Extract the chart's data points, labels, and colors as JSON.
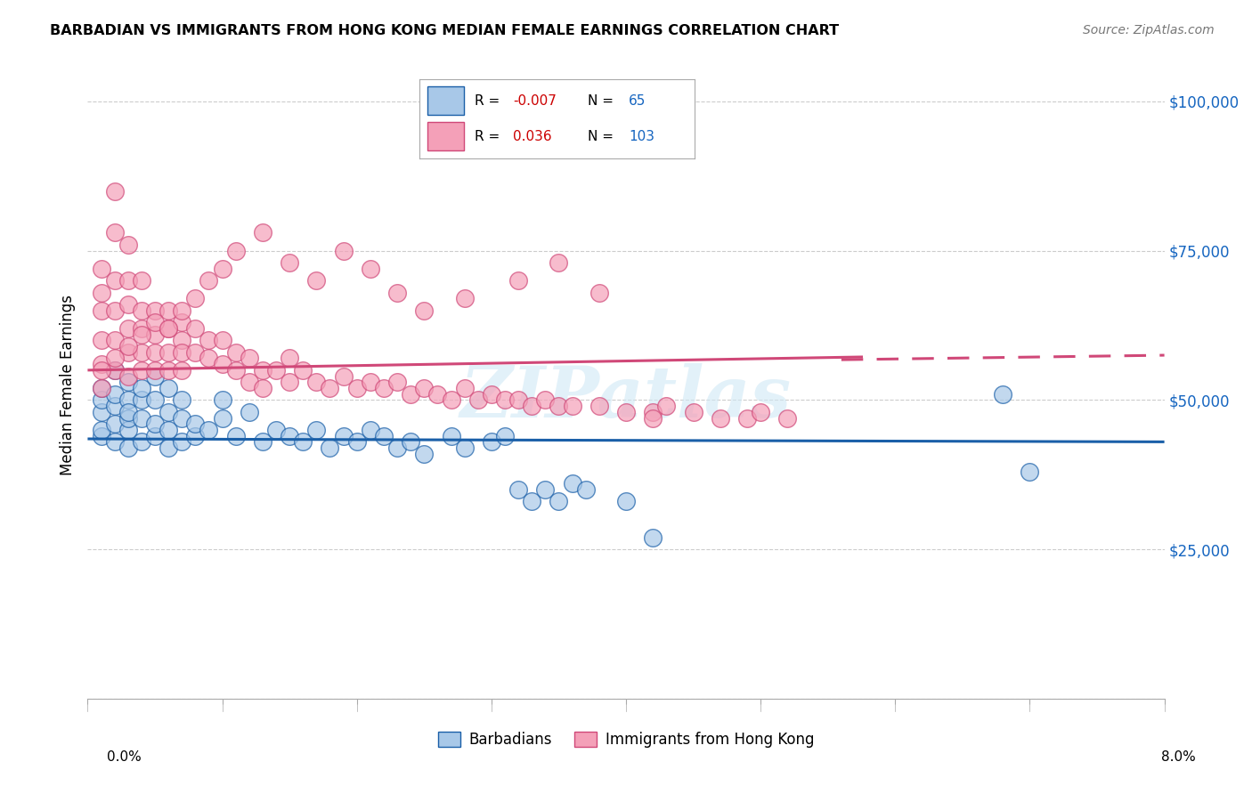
{
  "title": "BARBADIAN VS IMMIGRANTS FROM HONG KONG MEDIAN FEMALE EARNINGS CORRELATION CHART",
  "source": "Source: ZipAtlas.com",
  "ylabel": "Median Female Earnings",
  "watermark": "ZIPatlas",
  "color_blue": "#a8c8e8",
  "color_pink": "#f4a0b8",
  "line_blue": "#1a5fa8",
  "line_pink": "#d04878",
  "background": "#ffffff",
  "xmin": 0.0,
  "xmax": 0.08,
  "ymin": 0,
  "ymax": 105000,
  "yticks": [
    0,
    25000,
    50000,
    75000,
    100000
  ],
  "ytick_labels": [
    "",
    "$25,000",
    "$50,000",
    "$75,000",
    "$100,000"
  ],
  "blue_R": -0.007,
  "blue_N": 65,
  "pink_R": 0.036,
  "pink_N": 103,
  "blue_line_y0": 43500,
  "blue_line_y1": 43000,
  "pink_line_y0": 55000,
  "pink_line_y1": 57500,
  "blue_scatter_x": [
    0.001,
    0.001,
    0.001,
    0.001,
    0.001,
    0.002,
    0.002,
    0.002,
    0.002,
    0.002,
    0.003,
    0.003,
    0.003,
    0.003,
    0.003,
    0.003,
    0.004,
    0.004,
    0.004,
    0.004,
    0.005,
    0.005,
    0.005,
    0.005,
    0.006,
    0.006,
    0.006,
    0.006,
    0.007,
    0.007,
    0.007,
    0.008,
    0.008,
    0.009,
    0.01,
    0.01,
    0.011,
    0.012,
    0.013,
    0.014,
    0.015,
    0.016,
    0.017,
    0.018,
    0.019,
    0.02,
    0.021,
    0.022,
    0.023,
    0.024,
    0.025,
    0.027,
    0.028,
    0.03,
    0.031,
    0.032,
    0.033,
    0.034,
    0.035,
    0.036,
    0.037,
    0.04,
    0.042,
    0.068,
    0.07
  ],
  "blue_scatter_y": [
    44000,
    48000,
    50000,
    52000,
    45000,
    43000,
    46000,
    49000,
    51000,
    55000,
    42000,
    45000,
    47000,
    50000,
    53000,
    48000,
    43000,
    47000,
    50000,
    52000,
    44000,
    46000,
    50000,
    54000,
    42000,
    45000,
    48000,
    52000,
    43000,
    47000,
    50000,
    44000,
    46000,
    45000,
    47000,
    50000,
    44000,
    48000,
    43000,
    45000,
    44000,
    43000,
    45000,
    42000,
    44000,
    43000,
    45000,
    44000,
    42000,
    43000,
    41000,
    44000,
    42000,
    43000,
    44000,
    35000,
    33000,
    35000,
    33000,
    36000,
    35000,
    33000,
    27000,
    51000,
    38000
  ],
  "pink_scatter_x": [
    0.001,
    0.001,
    0.001,
    0.001,
    0.001,
    0.001,
    0.002,
    0.002,
    0.002,
    0.002,
    0.002,
    0.002,
    0.003,
    0.003,
    0.003,
    0.003,
    0.003,
    0.003,
    0.004,
    0.004,
    0.004,
    0.004,
    0.004,
    0.005,
    0.005,
    0.005,
    0.005,
    0.006,
    0.006,
    0.006,
    0.006,
    0.007,
    0.007,
    0.007,
    0.007,
    0.008,
    0.008,
    0.009,
    0.009,
    0.01,
    0.01,
    0.011,
    0.011,
    0.012,
    0.012,
    0.013,
    0.013,
    0.014,
    0.015,
    0.015,
    0.016,
    0.017,
    0.018,
    0.019,
    0.02,
    0.021,
    0.022,
    0.023,
    0.024,
    0.025,
    0.026,
    0.027,
    0.028,
    0.029,
    0.03,
    0.031,
    0.032,
    0.033,
    0.034,
    0.035,
    0.036,
    0.038,
    0.04,
    0.042,
    0.043,
    0.045,
    0.047,
    0.049,
    0.05,
    0.052,
    0.001,
    0.002,
    0.003,
    0.004,
    0.005,
    0.006,
    0.007,
    0.008,
    0.009,
    0.01,
    0.011,
    0.013,
    0.015,
    0.017,
    0.019,
    0.021,
    0.023,
    0.025,
    0.028,
    0.032,
    0.035,
    0.038,
    0.042
  ],
  "pink_scatter_y": [
    72000,
    68000,
    65000,
    60000,
    56000,
    52000,
    85000,
    78000,
    70000,
    65000,
    60000,
    55000,
    76000,
    70000,
    66000,
    62000,
    58000,
    54000,
    70000,
    65000,
    62000,
    58000,
    55000,
    65000,
    61000,
    58000,
    55000,
    65000,
    62000,
    58000,
    55000,
    63000,
    60000,
    58000,
    55000,
    62000,
    58000,
    60000,
    57000,
    60000,
    56000,
    58000,
    55000,
    57000,
    53000,
    55000,
    52000,
    55000,
    57000,
    53000,
    55000,
    53000,
    52000,
    54000,
    52000,
    53000,
    52000,
    53000,
    51000,
    52000,
    51000,
    50000,
    52000,
    50000,
    51000,
    50000,
    50000,
    49000,
    50000,
    49000,
    49000,
    49000,
    48000,
    48000,
    49000,
    48000,
    47000,
    47000,
    48000,
    47000,
    55000,
    57000,
    59000,
    61000,
    63000,
    62000,
    65000,
    67000,
    70000,
    72000,
    75000,
    78000,
    73000,
    70000,
    75000,
    72000,
    68000,
    65000,
    67000,
    70000,
    73000,
    68000,
    47000
  ]
}
